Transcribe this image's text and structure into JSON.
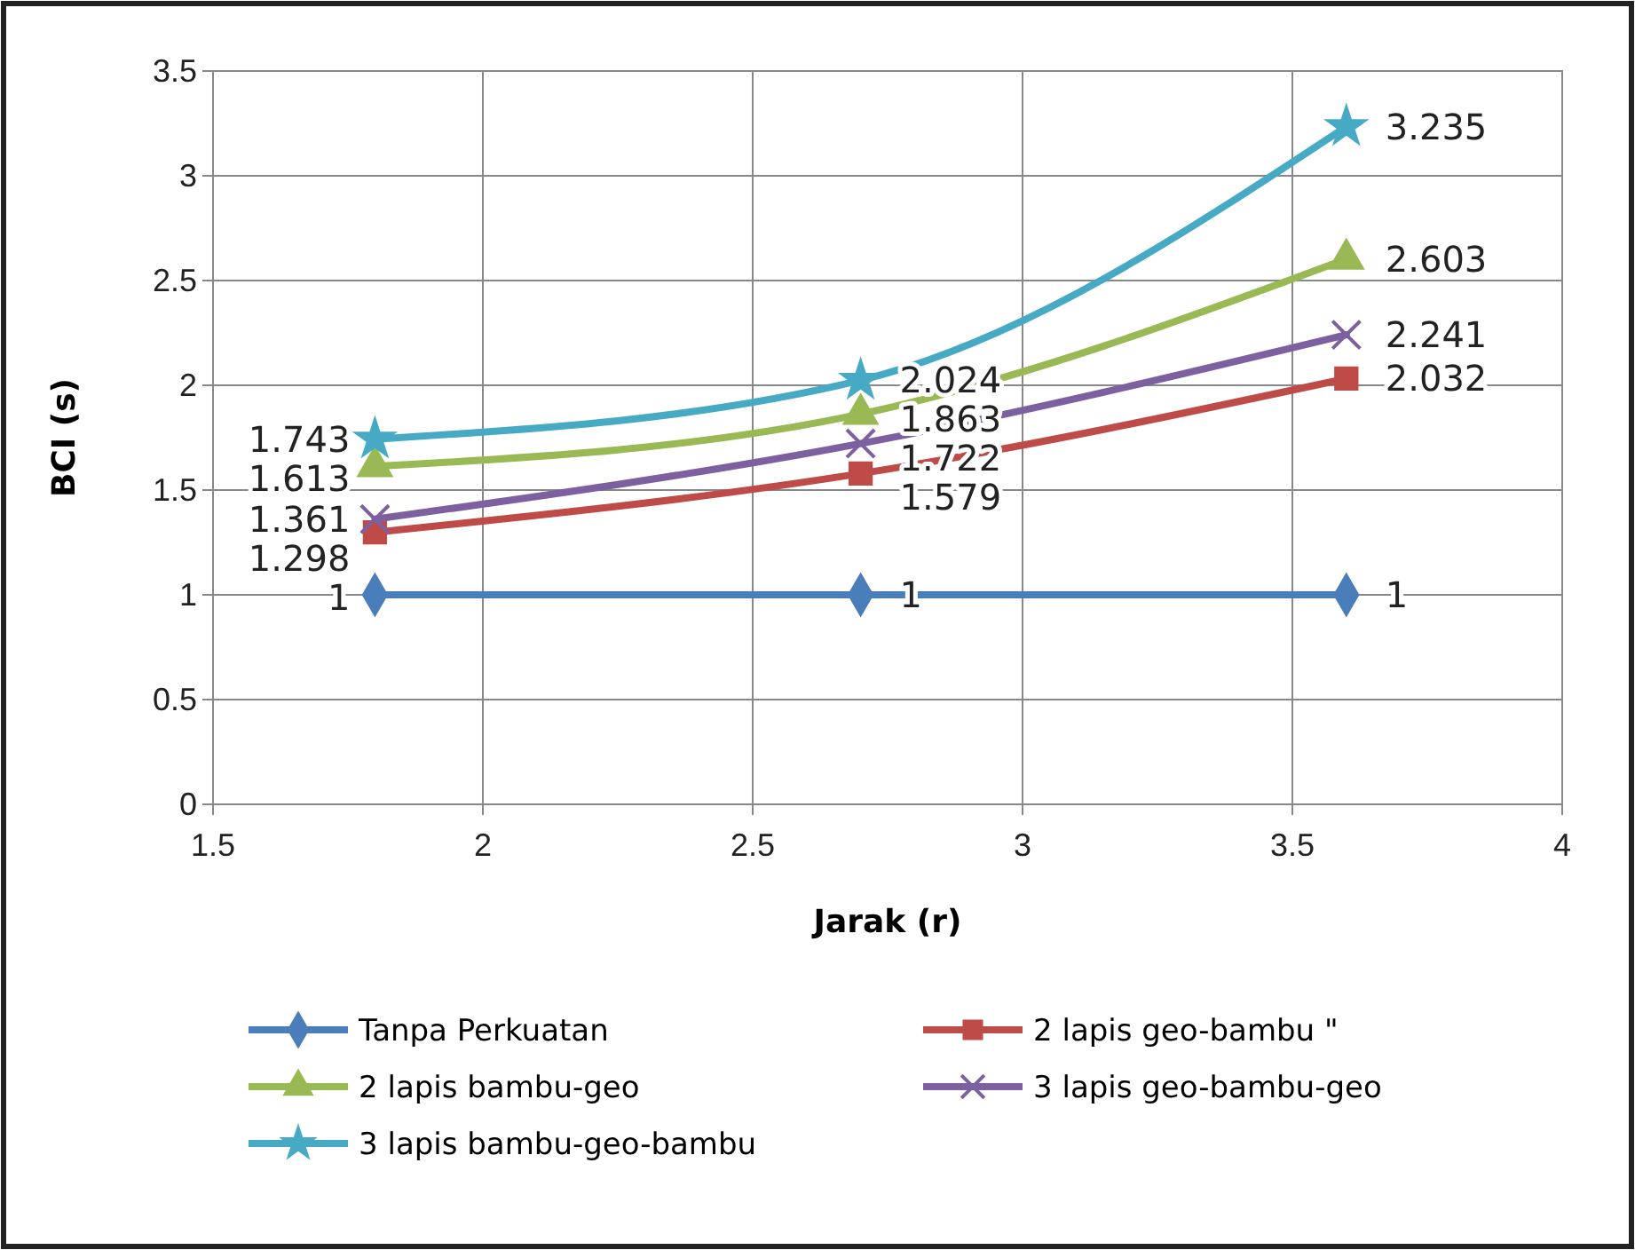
{
  "chart_data": {
    "type": "line",
    "xlabel": "Jarak (r)",
    "ylabel": "BCI (s)",
    "x": [
      1.8,
      2.7,
      3.6
    ],
    "xlim": [
      1.5,
      4
    ],
    "xticks": [
      1.5,
      2,
      2.5,
      3,
      3.5,
      4
    ],
    "ylim": [
      0,
      3.5
    ],
    "yticks": [
      0,
      0.5,
      1,
      1.5,
      2,
      2.5,
      3,
      3.5
    ],
    "grid": true,
    "legend": "bottom",
    "data_labels": true,
    "series": [
      {
        "name": "Tanpa Perkuatan",
        "color": "#4a7ebb",
        "marker": "diamond",
        "values": [
          1,
          1,
          1
        ]
      },
      {
        "name": "2 lapis geo-bambu \"",
        "color": "#be4b48",
        "marker": "square",
        "values": [
          1.298,
          1.579,
          2.032
        ]
      },
      {
        "name": "2 lapis bambu-geo",
        "color": "#98b954",
        "marker": "triangle",
        "values": [
          1.613,
          1.863,
          2.603
        ]
      },
      {
        "name": "3 lapis geo-bambu-geo",
        "color": "#7d60a0",
        "marker": "cross",
        "values": [
          1.361,
          1.722,
          2.241
        ]
      },
      {
        "name": "3 lapis bambu-geo-bambu",
        "color": "#46aac5",
        "marker": "star",
        "values": [
          1.743,
          2.024,
          3.235
        ]
      }
    ]
  }
}
